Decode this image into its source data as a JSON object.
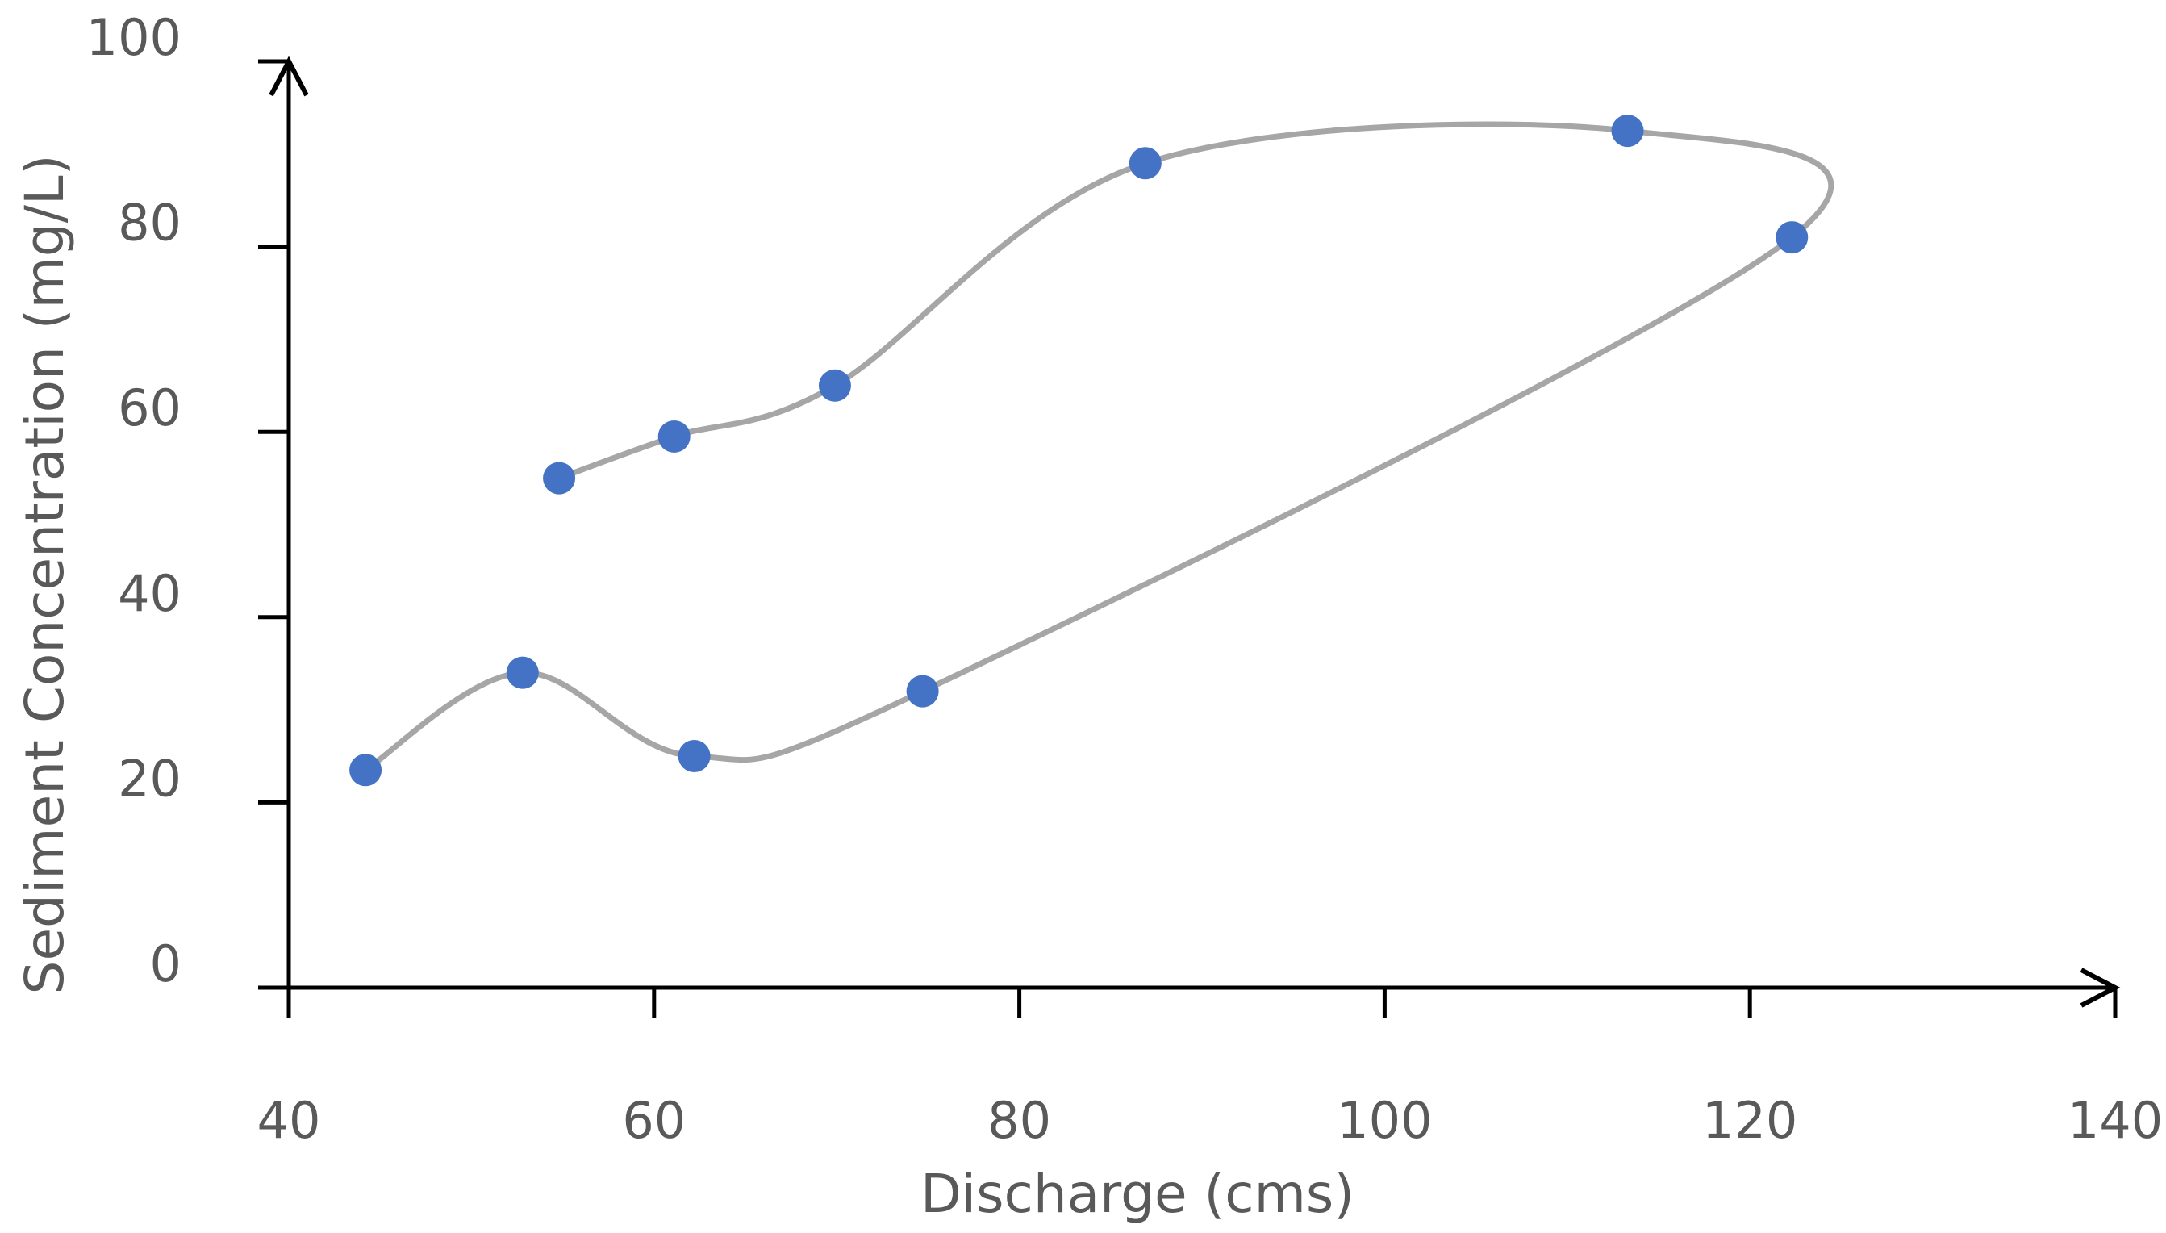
{
  "chart_data": {
    "type": "line",
    "title": "",
    "xlabel": "Discharge (cms)",
    "ylabel": "Sediment Concentration (mg/L)",
    "xlim": [
      40,
      140
    ],
    "ylim": [
      0,
      100
    ],
    "x_ticks": [
      40,
      60,
      80,
      100,
      120,
      140
    ],
    "y_ticks": [
      0,
      20,
      40,
      60,
      80,
      100
    ],
    "grid": false,
    "legend": "none",
    "series": [
      {
        "points": [
          {
            "x": 44.2,
            "y": 23.5
          },
          {
            "x": 52.8,
            "y": 34.0
          },
          {
            "x": 62.2,
            "y": 25.0
          },
          {
            "x": 74.7,
            "y": 32.0
          },
          {
            "x": 122.3,
            "y": 81.0
          },
          {
            "x": 113.3,
            "y": 92.5
          },
          {
            "x": 86.9,
            "y": 89.0
          },
          {
            "x": 69.9,
            "y": 65.0
          },
          {
            "x": 61.1,
            "y": 59.5
          },
          {
            "x": 54.8,
            "y": 55.0
          }
        ]
      }
    ],
    "colors": {
      "point": "#4472C4",
      "line": "#A6A6A6",
      "axis": "#000000",
      "text": "#595959"
    }
  }
}
